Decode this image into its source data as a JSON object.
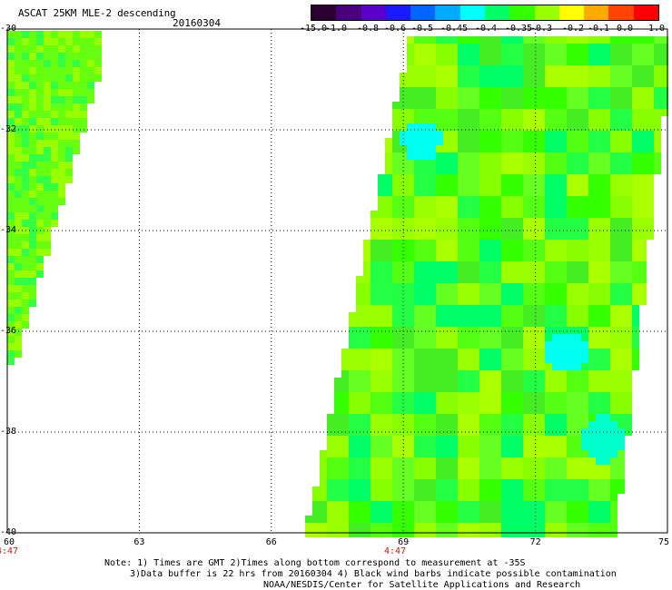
{
  "header": {
    "title": "ASCAT 25KM MLE-2 descending",
    "date": "20160304"
  },
  "colorbar": {
    "labels": [
      "-15.0",
      "-1.0",
      "-0.8",
      "-0.6",
      "-0.5",
      "-0.45",
      "-0.4",
      "-0.35",
      "-0.3",
      "-0.2",
      "-0.1",
      "0.0",
      "1.0"
    ],
    "colors": [
      "#2a0030",
      "#4a007a",
      "#5a00c8",
      "#1a1aff",
      "#0066ff",
      "#00aaff",
      "#00ffff",
      "#00ff66",
      "#33ff00",
      "#99ff00",
      "#ffff00",
      "#ffaa00",
      "#ff4400",
      "#ff0000"
    ]
  },
  "map": {
    "lat_labels": [
      "-30",
      "-32",
      "-34",
      "-36",
      "-38",
      "-40"
    ],
    "lon_labels": [
      "60",
      "63",
      "66",
      "69",
      "72",
      "75"
    ],
    "time_labels": [
      "4:47",
      "4:47"
    ],
    "lat_range": [
      -40,
      -30
    ],
    "lon_range": [
      60,
      75
    ]
  },
  "notes": {
    "line1": "Note: 1) Times are GMT 2)Times along bottom correspond to measurement at -35S",
    "line2": "3)Data buffer is 22 hrs from 20160304 4) Black wind barbs indicate possible contamination",
    "line3": "NOAA/NESDIS/Center for Satellite Applications and Research"
  }
}
